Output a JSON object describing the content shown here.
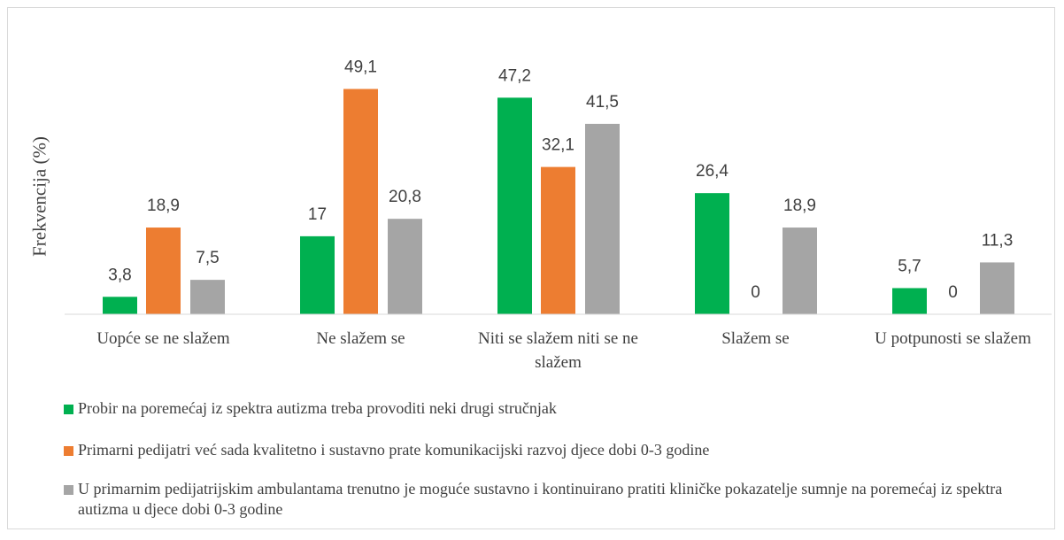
{
  "chart_data": {
    "type": "bar",
    "y_label": "Frekvencija (%)",
    "categories": [
      "Uopće se ne slažem",
      "Ne slažem se",
      "Niti se slažem niti se ne slažem",
      "Slažem se",
      "U potpunosti se slažem"
    ],
    "ylim": [
      0,
      60
    ],
    "series": [
      {
        "name": "Probir na poremećaj iz spektra autizma treba provoditi neki drugi stručnjak",
        "color": "#00b050",
        "values": [
          3.8,
          17,
          47.2,
          26.4,
          5.7
        ],
        "value_labels": [
          "3,8",
          "17",
          "47,2",
          "26,4",
          "5,7"
        ]
      },
      {
        "name": "Primarni pedijatri već sada kvalitetno i sustavno prate komunikacijski razvoj djece dobi 0-3 godine",
        "color": "#ed7d31",
        "values": [
          18.9,
          49.1,
          32.1,
          0,
          0
        ],
        "value_labels": [
          "18,9",
          "49,1",
          "32,1",
          "0",
          "0"
        ]
      },
      {
        "name": "U primarnim pedijatrijskim ambulantama trenutno je moguće sustavno i kontinuirano pratiti kliničke pokazatelje sumnje na poremećaj iz spektra autizma u djece dobi 0-3 godine",
        "color": "#a5a5a5",
        "values": [
          7.5,
          20.8,
          41.5,
          18.9,
          11.3
        ],
        "value_labels": [
          "7,5",
          "20,8",
          "41,5",
          "18,9",
          "11,3"
        ]
      }
    ]
  }
}
